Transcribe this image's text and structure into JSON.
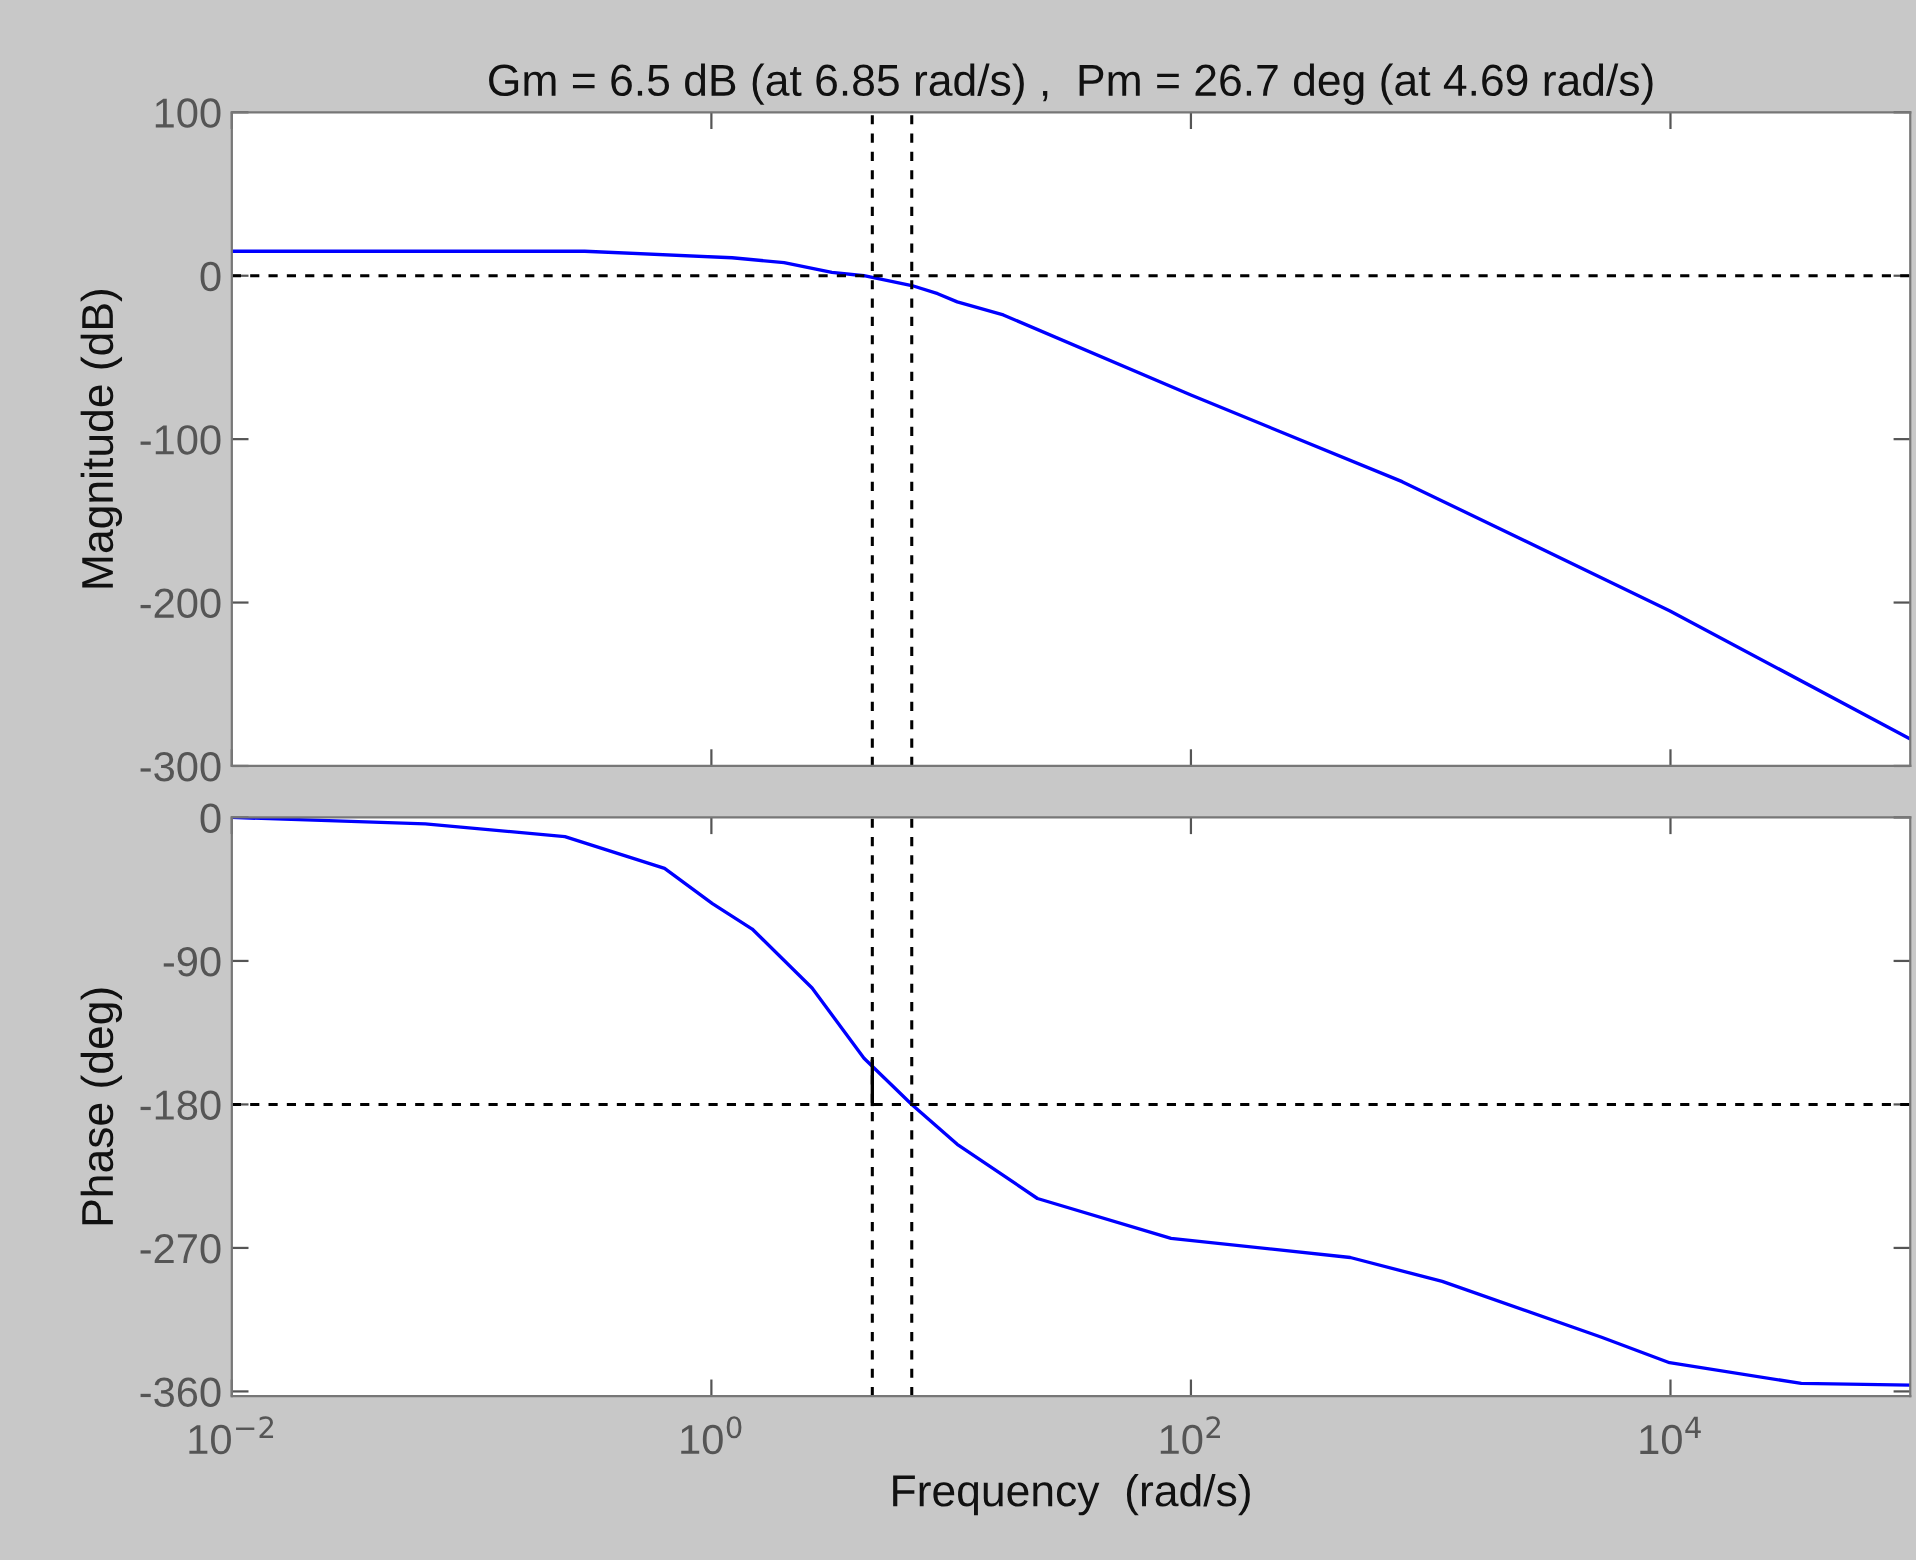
{
  "chart_data": [
    {
      "type": "line",
      "title": "Gm = 6.5 dB (at 6.85 rad/s) ,  Pm = 26.7 deg (at 4.69 rad/s)",
      "ylabel": "Magnitude (dB)",
      "log": "x",
      "xlim": [
        0.01,
        100000
      ],
      "xticks": [
        {
          "value": 0.01,
          "label": null
        },
        {
          "value": 1,
          "label": null
        },
        {
          "value": 100,
          "label": null
        },
        {
          "value": 10000,
          "label": null
        }
      ],
      "ylim": [
        -300,
        100
      ],
      "yticks": [
        -300,
        -200,
        -100,
        0,
        100
      ],
      "tick_labels": "y",
      "grid": false,
      "legend": false,
      "series": [
        {
          "color": "#0000ff",
          "x": [
            0.01,
            0.296,
            1.22,
            2.01,
            3.18,
            4.33,
            6.85,
            8.79,
            10.6,
            16.5,
            100,
            760,
            9910,
            98600
          ],
          "values": [
            15,
            15,
            11,
            8,
            2,
            0,
            -6,
            -11,
            -16,
            -24,
            -73,
            -126,
            -205,
            -283
          ]
        }
      ],
      "ref_lines": [
        {
          "axis": "y",
          "value": 0,
          "color": "#000000",
          "line_style": "dashed"
        },
        {
          "axis": "x",
          "value": 4.69,
          "color": "#000000",
          "line_style": "dashed"
        },
        {
          "axis": "x",
          "value": 6.85,
          "color": "#000000",
          "line_style": "dashed"
        }
      ]
    },
    {
      "type": "line",
      "xlabel": "Frequency  (rad/s)",
      "ylabel": "Phase (deg)",
      "log": "x",
      "xlim": [
        0.01,
        100000
      ],
      "xticks": [
        {
          "value": 0.01,
          "label": "10$^{−2}$"
        },
        {
          "value": 1,
          "label": "10$^{0}$"
        },
        {
          "value": 100,
          "label": "10$^{2}$"
        },
        {
          "value": 10000,
          "label": "10$^{4}$"
        }
      ],
      "ylim": [
        -363,
        0
      ],
      "yticks": [
        -360,
        -270,
        -180,
        -90,
        0
      ],
      "grid": false,
      "legend": false,
      "series": [
        {
          "color": "#0000ff",
          "x": [
            0.01,
            0.0641,
            0.245,
            0.638,
            1.01,
            1.48,
            2.63,
            4.33,
            6.85,
            10.6,
            22.9,
            82.6,
            462,
            1117,
            5160,
            9910,
            35100,
            98600
          ],
          "values": [
            0,
            -4,
            -12,
            -32,
            -54,
            -70,
            -107,
            -151,
            -180,
            -205,
            -239,
            -264,
            -276,
            -291,
            -326,
            -342,
            -355,
            -356
          ]
        },
        {
          "color": "#000000",
          "x": [
            4.69,
            4.69
          ],
          "values": [
            -153,
            -180
          ]
        }
      ],
      "ref_lines": [
        {
          "axis": "y",
          "value": -180,
          "color": "#000000",
          "line_style": "dashed"
        },
        {
          "axis": "x",
          "value": 4.69,
          "color": "#000000",
          "line_style": "dashed"
        },
        {
          "axis": "x",
          "value": 6.85,
          "color": "#000000",
          "line_style": "dashed"
        }
      ]
    }
  ]
}
